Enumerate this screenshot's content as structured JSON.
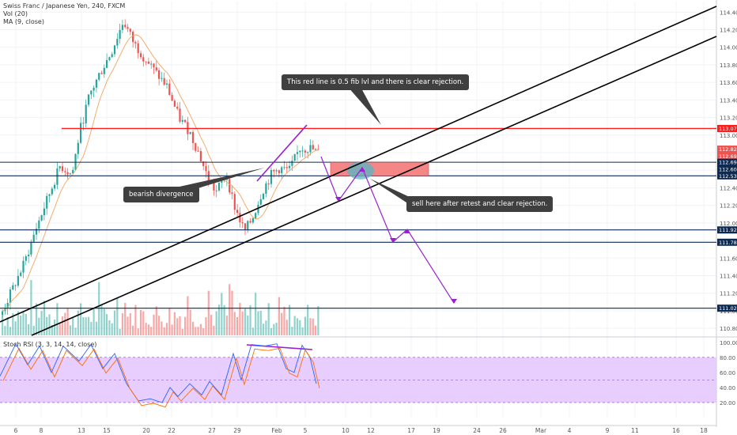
{
  "header": {
    "symbol": "Swiss Franc / Japanese Yen, 240, FXCM",
    "vol": "Vol (20)",
    "ma": "MA (9, close)"
  },
  "stoch": {
    "label": "Stoch RSI (3, 3, 14, 14, close)"
  },
  "annotations": {
    "fib_note": "This red line is 0.5 fib lvl and there is clear rejection.",
    "divergence": "bearish divergence",
    "sell_note": "sell here after retest and clear rejection."
  },
  "colors": {
    "up": "#26a69a",
    "down": "#ef5350",
    "resistance": "#ff1a1a",
    "support": "#0d2a52",
    "channel": "#000000",
    "projection": "#9b1fd1",
    "stoch_band": "#e4c6ff"
  },
  "chart_data": [
    {
      "type": "line",
      "title": "Swiss Franc / Japanese Yen, 240, FXCM",
      "x_ticks": [
        "6",
        "8",
        "13",
        "15",
        "20",
        "22",
        "27",
        "29",
        "Feb",
        "5",
        "10",
        "12",
        "17",
        "19",
        "24",
        "26",
        "Mar",
        "4",
        "9",
        "11",
        "16",
        "18"
      ],
      "y_ticks": [
        "110.800",
        "111.000",
        "111.200",
        "111.400",
        "111.600",
        "111.800",
        "112.000",
        "112.200",
        "112.400",
        "112.600",
        "112.800",
        "113.000",
        "113.200",
        "113.400",
        "113.600",
        "113.800",
        "114.000",
        "114.200",
        "114.400"
      ],
      "ylim": [
        110.72,
        114.52
      ],
      "price_tags": {
        "resistance": "113.075",
        "last_close": "112.822",
        "second": "112.692",
        "support_1": "112.691",
        "support_2": "112.600",
        "support_3": "112.536",
        "target_1": "111.920",
        "target_2": "111.780",
        "target_3": "111.029"
      },
      "levels": [
        {
          "name": "resistance",
          "value": 113.075
        },
        {
          "name": "support_1",
          "value": 112.691
        },
        {
          "name": "support_3",
          "value": 112.536
        },
        {
          "name": "target_1",
          "value": 111.92
        },
        {
          "name": "target_2",
          "value": 111.78
        },
        {
          "name": "target_3",
          "value": 111.029
        }
      ],
      "sell_zone": {
        "price_top": 112.691,
        "price_bottom": 112.536
      }
    },
    {
      "type": "line",
      "title": "Stoch RSI (3, 3, 14, 14, close)",
      "y_ticks": [
        "20.00",
        "40.00",
        "60.00",
        "80.00",
        "100.00"
      ],
      "ylim": [
        0,
        105
      ],
      "band": [
        20,
        80
      ]
    }
  ]
}
